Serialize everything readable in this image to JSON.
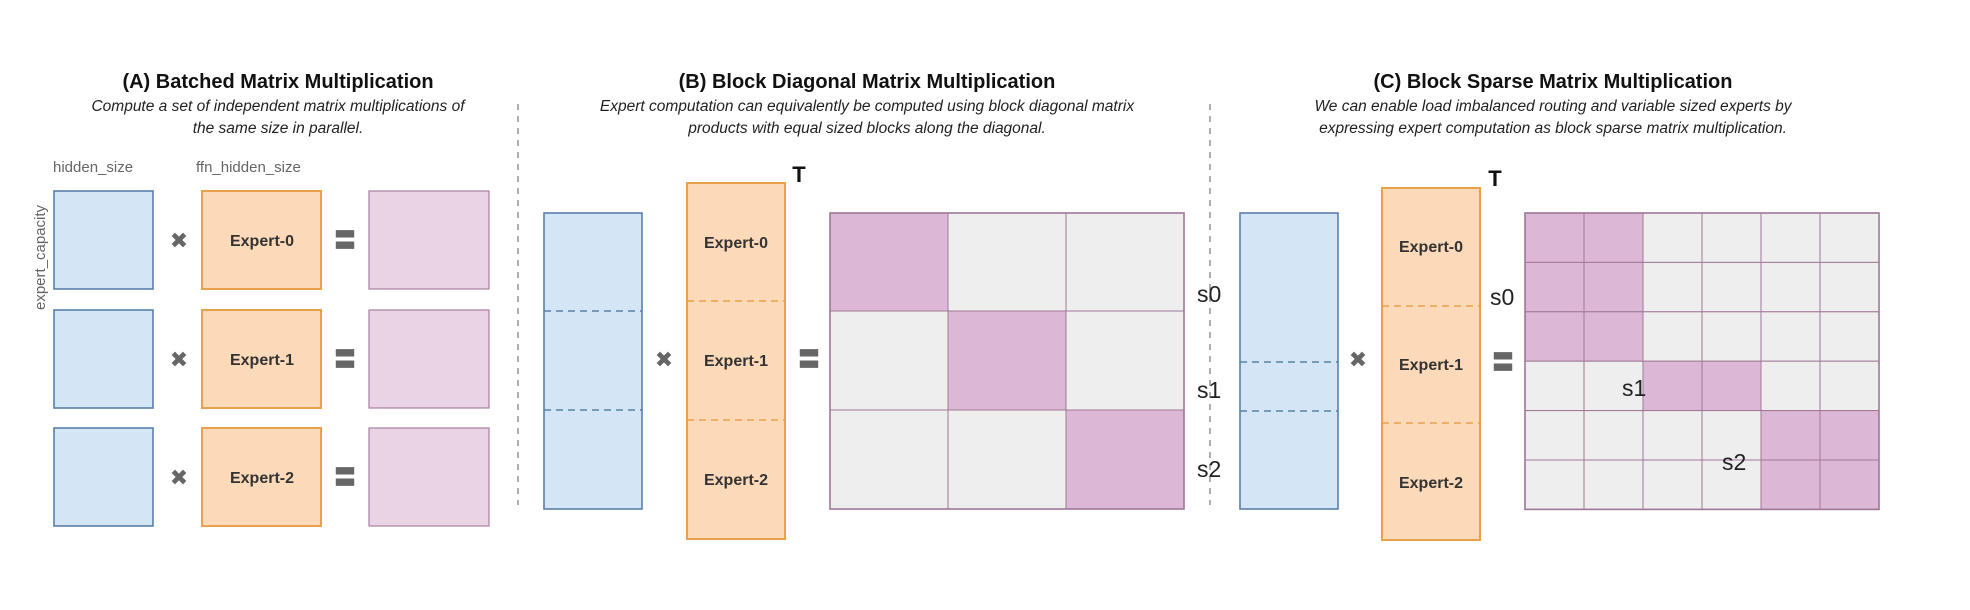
{
  "panels": {
    "a": {
      "title": "(A) Batched Matrix Multiplication",
      "subtitle_line1": "Compute a set of independent matrix multiplications of",
      "subtitle_line2": "the same size in parallel.",
      "hidden_size_label": "hidden_size",
      "ffn_hidden_size_label": "ffn_hidden_size",
      "expert_capacity_label": "expert_capacity",
      "experts": [
        "Expert-0",
        "Expert-1",
        "Expert-2"
      ]
    },
    "b": {
      "title": "(B) Block Diagonal Matrix Multiplication",
      "subtitle_line1": "Expert computation can equivalently be computed using block diagonal matrix",
      "subtitle_line2": "products with equal sized blocks along the diagonal.",
      "transpose_label": "T",
      "experts": [
        "Expert-0",
        "Expert-1",
        "Expert-2"
      ],
      "segment_labels": [
        "s0",
        "s1",
        "s2"
      ]
    },
    "c": {
      "title": "(C) Block Sparse Matrix Multiplication",
      "subtitle_line1": "We can enable load imbalanced routing and variable sized experts by",
      "subtitle_line2": "expressing expert computation as block sparse matrix multiplication.",
      "transpose_label": "T",
      "experts": [
        "Expert-0",
        "Expert-1",
        "Expert-2"
      ],
      "segment_labels": [
        "s0",
        "s1",
        "s2"
      ]
    }
  },
  "operators": {
    "multiply": "✖",
    "equals": "〓"
  },
  "colors": {
    "input_fill": "#d4e6f5",
    "expert_fill": "#fcd9b8",
    "output_fill": "#ead3e5",
    "active_block": "#ddb7d6",
    "inactive_block": "#eeeeef"
  }
}
